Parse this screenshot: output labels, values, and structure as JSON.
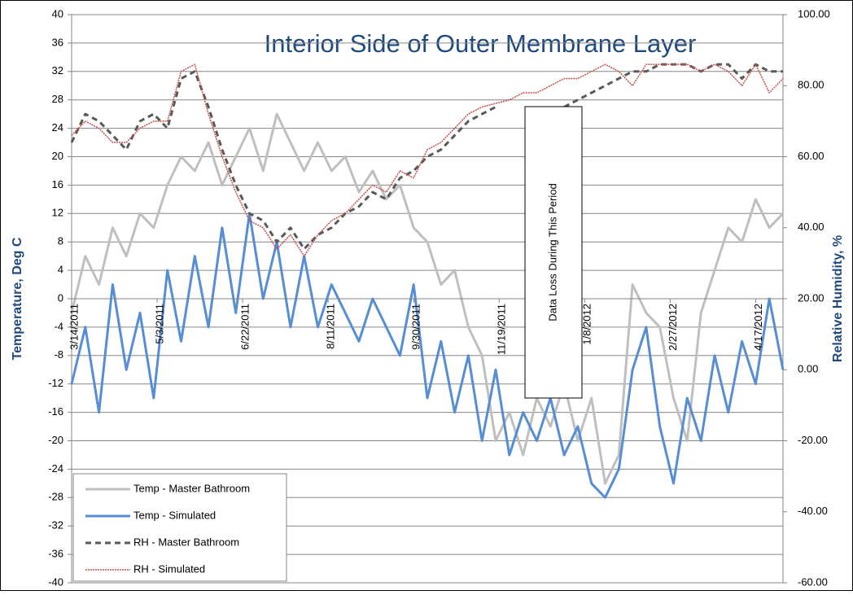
{
  "chart_data": {
    "type": "line",
    "title": "Interior Side of Outer Membrane Layer",
    "y_label": "Temperature, Deg C",
    "y2_label": "Relative Humidity, %",
    "annotation": "Data Loss During This Period",
    "grid": true,
    "legend": "lower left",
    "xlim": [
      "2011-03-14",
      "2012-05-03"
    ],
    "xticks": [
      {
        "value": "2011-03-14",
        "label": "3/14/2011"
      },
      {
        "value": "2011-05-03",
        "label": "5/3/2011"
      },
      {
        "value": "2011-06-22",
        "label": "6/22/2011"
      },
      {
        "value": "2011-08-11",
        "label": "8/11/2011"
      },
      {
        "value": "2011-09-30",
        "label": "9/30/2011"
      },
      {
        "value": "2011-11-19",
        "label": "11/19/2011"
      },
      {
        "value": "2012-01-08",
        "label": "1/8/2012"
      },
      {
        "value": "2012-02-27",
        "label": "2/27/2012"
      },
      {
        "value": "2012-04-17",
        "label": "4/17/2012"
      }
    ],
    "ylim": [
      -40,
      40
    ],
    "yticks": [
      -40,
      -36,
      -32,
      -28,
      -24,
      -20,
      -16,
      -12,
      -8,
      -4,
      0,
      4,
      8,
      12,
      16,
      20,
      24,
      28,
      32,
      36,
      40
    ],
    "y2lim": [
      -60,
      100
    ],
    "y2ticks": [
      {
        "value": -60,
        "label": "-60.00"
      },
      {
        "value": -40,
        "label": "-40.00"
      },
      {
        "value": -20,
        "label": "-20.00"
      },
      {
        "value": 0,
        "label": "0.00"
      },
      {
        "value": 20,
        "label": "20.00"
      },
      {
        "value": 40,
        "label": "40.00"
      },
      {
        "value": 60,
        "label": "60.00"
      },
      {
        "value": 80,
        "label": "80.00"
      },
      {
        "value": 100,
        "label": "100.00"
      }
    ],
    "x": [
      "2011-03-14",
      "2011-03-22",
      "2011-03-30",
      "2011-04-07",
      "2011-04-15",
      "2011-04-23",
      "2011-05-01",
      "2011-05-09",
      "2011-05-17",
      "2011-05-25",
      "2011-06-02",
      "2011-06-10",
      "2011-06-18",
      "2011-06-26",
      "2011-07-04",
      "2011-07-12",
      "2011-07-20",
      "2011-07-28",
      "2011-08-05",
      "2011-08-13",
      "2011-08-21",
      "2011-08-29",
      "2011-09-06",
      "2011-09-14",
      "2011-09-22",
      "2011-09-30",
      "2011-10-08",
      "2011-10-16",
      "2011-10-24",
      "2011-11-01",
      "2011-11-09",
      "2011-11-17",
      "2011-11-25",
      "2011-12-03",
      "2011-12-11",
      "2011-12-19",
      "2011-12-27",
      "2012-01-04",
      "2012-01-12",
      "2012-01-20",
      "2012-01-28",
      "2012-02-05",
      "2012-02-13",
      "2012-02-21",
      "2012-02-29",
      "2012-03-08",
      "2012-03-16",
      "2012-03-24",
      "2012-04-01",
      "2012-04-09",
      "2012-04-17",
      "2012-04-25",
      "2012-05-03"
    ],
    "series": [
      {
        "name": "Temp - Master Bathroom",
        "color": "#bfbfbf",
        "width": 3,
        "values": [
          -2,
          6,
          2,
          10,
          6,
          12,
          10,
          16,
          20,
          18,
          22,
          16,
          20,
          24,
          18,
          26,
          22,
          18,
          22,
          18,
          20,
          15,
          18,
          14,
          16,
          10,
          8,
          2,
          4,
          -4,
          -8,
          -20,
          -16,
          -22,
          -14,
          -18,
          -12,
          -20,
          -14,
          -26,
          -22,
          2,
          -2,
          -4,
          -14,
          -20,
          -2,
          4,
          10,
          8,
          14,
          10,
          12
        ]
      },
      {
        "name": "Temp - Simulated",
        "color": "#558ed5",
        "width": 3,
        "values": [
          -12,
          -4,
          -16,
          2,
          -10,
          -2,
          -14,
          4,
          -6,
          6,
          -4,
          10,
          -2,
          12,
          0,
          8,
          -4,
          6,
          -4,
          2,
          -2,
          -6,
          0,
          -4,
          -8,
          2,
          -14,
          -6,
          -16,
          -8,
          -20,
          -10,
          -22,
          -16,
          -20,
          -14,
          -22,
          -18,
          -26,
          -28,
          -24,
          -10,
          -4,
          -18,
          -26,
          -14,
          -20,
          -8,
          -16,
          -6,
          -12,
          0,
          -10
        ]
      },
      {
        "name": "RH - Master Bathroom",
        "color": "#595959",
        "width": 3,
        "dash": "7,5",
        "axis": "y2",
        "values": [
          64,
          72,
          70,
          66,
          62,
          70,
          72,
          68,
          82,
          84,
          74,
          62,
          52,
          44,
          42,
          36,
          40,
          34,
          38,
          40,
          44,
          46,
          50,
          48,
          54,
          56,
          60,
          62,
          66,
          70,
          72,
          74,
          null,
          null,
          null,
          null,
          74,
          76,
          78,
          80,
          82,
          84,
          84,
          86,
          86,
          86,
          84,
          86,
          86,
          82,
          86,
          84,
          84
        ]
      },
      {
        "name": "RH - Simulated",
        "color": "#c0504d",
        "width": 1.5,
        "dash": "2,1",
        "axis": "y2",
        "values": [
          66,
          70,
          68,
          64,
          64,
          68,
          70,
          70,
          84,
          86,
          72,
          60,
          50,
          42,
          40,
          34,
          38,
          32,
          38,
          42,
          44,
          48,
          52,
          50,
          56,
          54,
          62,
          64,
          68,
          72,
          74,
          75,
          76,
          78,
          78,
          80,
          82,
          82,
          84,
          86,
          84,
          80,
          86,
          86,
          86,
          86,
          84,
          86,
          84,
          80,
          86,
          78,
          82
        ]
      }
    ]
  }
}
